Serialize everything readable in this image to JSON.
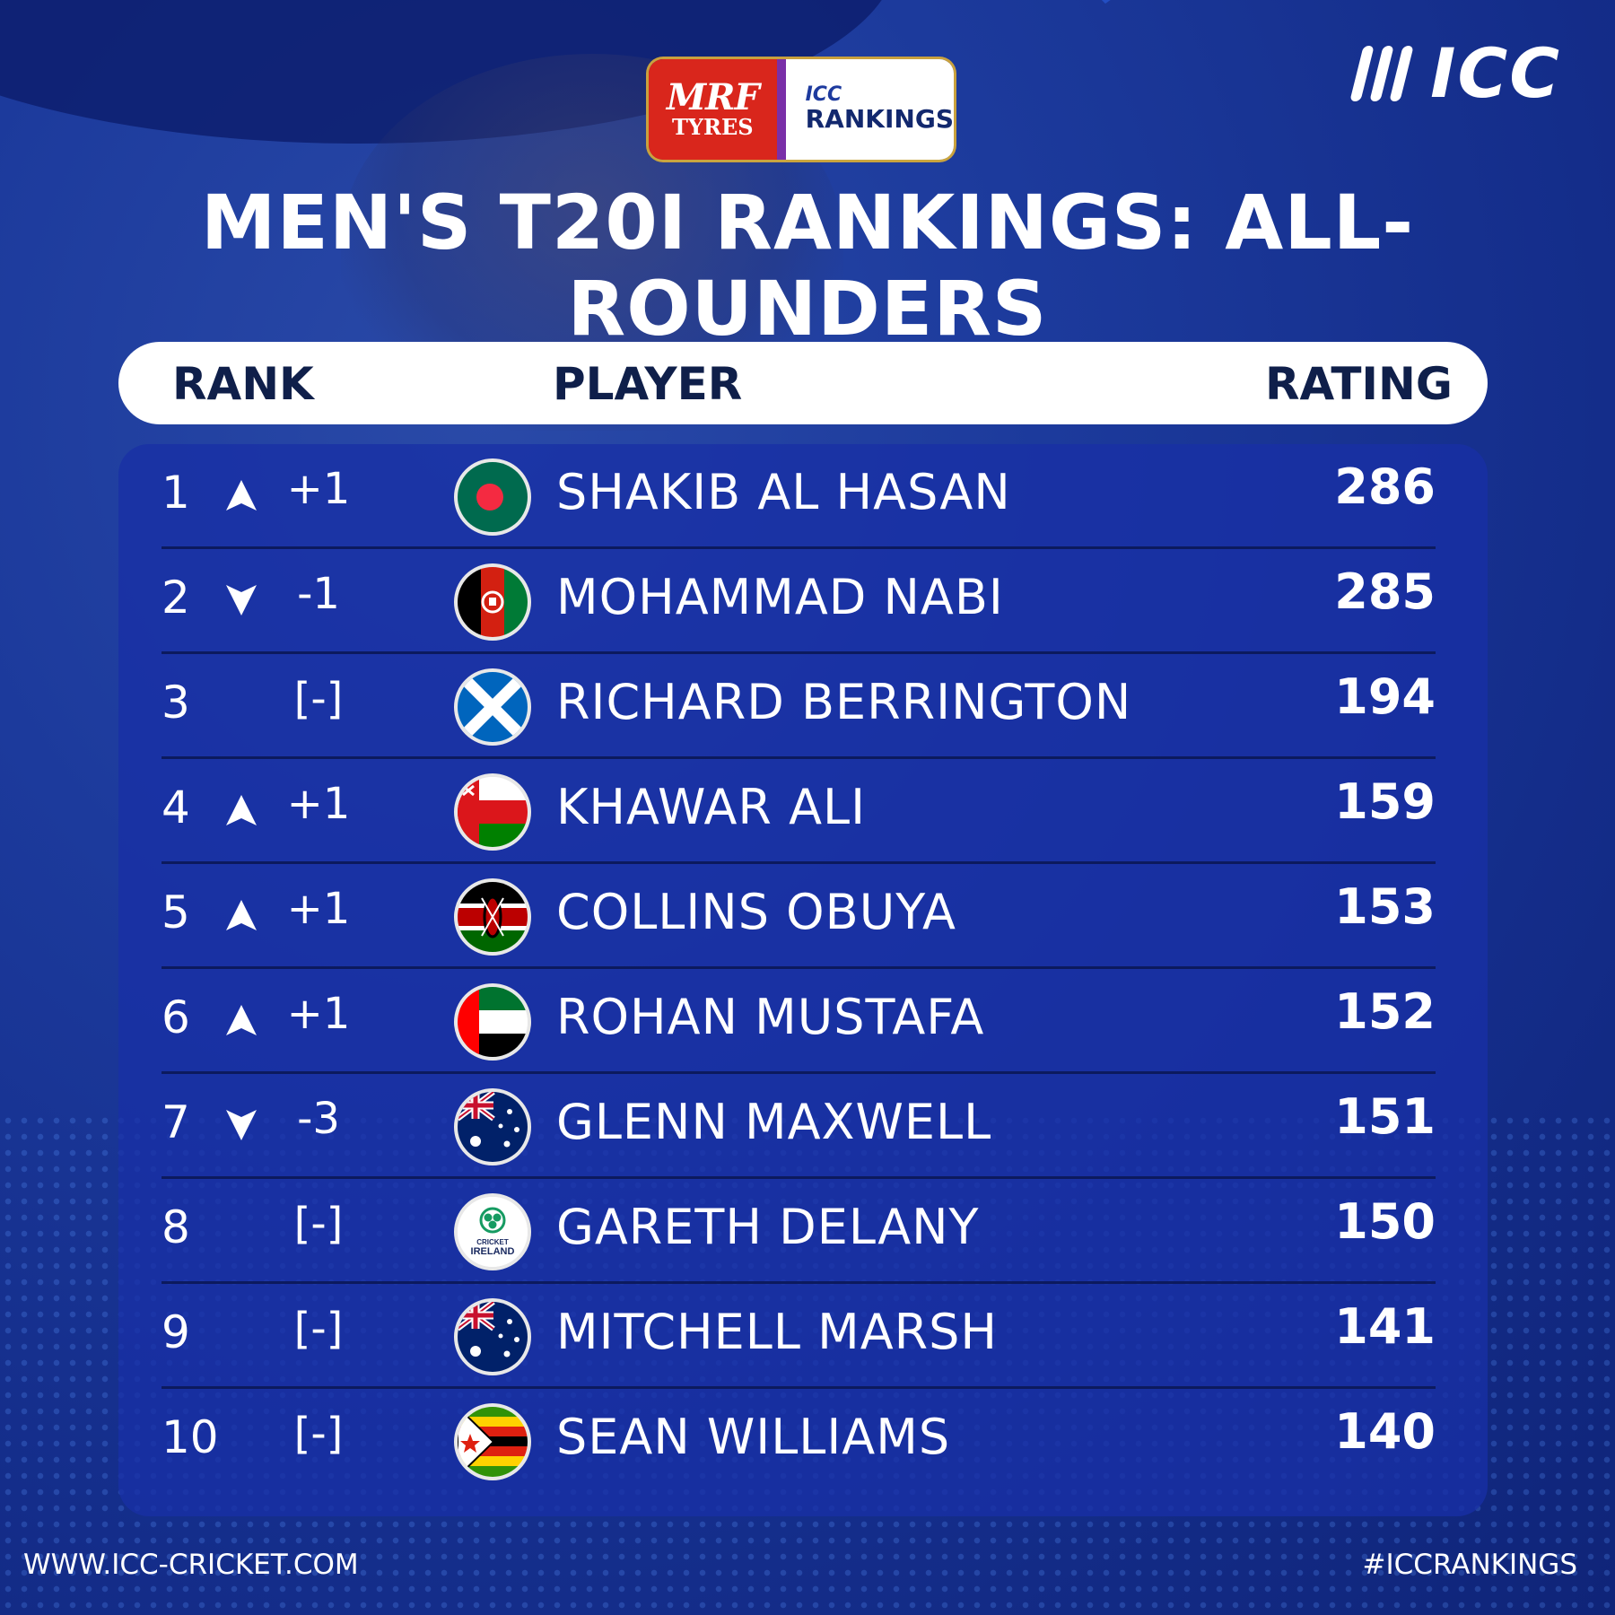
{
  "sponsor": {
    "brand": "MRF",
    "sub": "TYRES",
    "icc": "ICC",
    "rankings": "RANKINGS"
  },
  "icc_logo": "ICC",
  "title": "MEN'S T20I RANKINGS: ALL-ROUNDERS",
  "header": {
    "rank": "RANK",
    "player": "PLAYER",
    "rating": "RATING"
  },
  "rows": [
    {
      "rank": "1",
      "dir": "up",
      "change": "+1",
      "flag": "bangladesh",
      "name": "SHAKIB AL HASAN",
      "rating": "286"
    },
    {
      "rank": "2",
      "dir": "down",
      "change": "-1",
      "flag": "afghanistan",
      "name": "MOHAMMAD NABI",
      "rating": "285"
    },
    {
      "rank": "3",
      "dir": "none",
      "change": "[-]",
      "flag": "scotland",
      "name": "RICHARD BERRINGTON",
      "rating": "194"
    },
    {
      "rank": "4",
      "dir": "up",
      "change": "+1",
      "flag": "oman",
      "name": "KHAWAR ALI",
      "rating": "159"
    },
    {
      "rank": "5",
      "dir": "up",
      "change": "+1",
      "flag": "kenya",
      "name": "COLLINS OBUYA",
      "rating": "153"
    },
    {
      "rank": "6",
      "dir": "up",
      "change": "+1",
      "flag": "uae",
      "name": "ROHAN MUSTAFA",
      "rating": "152"
    },
    {
      "rank": "7",
      "dir": "down",
      "change": "-3",
      "flag": "australia",
      "name": "GLENN MAXWELL",
      "rating": "151"
    },
    {
      "rank": "8",
      "dir": "none",
      "change": "[-]",
      "flag": "ireland",
      "name": "GARETH DELANY",
      "rating": "150"
    },
    {
      "rank": "9",
      "dir": "none",
      "change": "[-]",
      "flag": "australia",
      "name": "MITCHELL MARSH",
      "rating": "141"
    },
    {
      "rank": "10",
      "dir": "none",
      "change": "[-]",
      "flag": "zimbabwe",
      "name": "SEAN WILLIAMS",
      "rating": "140"
    }
  ],
  "ireland_logo_text": {
    "line1": "CRICKET",
    "line2": "IRELAND"
  },
  "footer": {
    "website": "WWW.ICC-CRICKET.COM",
    "hashtag": "#ICCRANKINGS"
  },
  "colors": {
    "background": "#1c3a9c",
    "table": "#1830a5",
    "header_bar": "#ffffff",
    "text": "#ffffff",
    "header_text": "#0f1f4a"
  }
}
